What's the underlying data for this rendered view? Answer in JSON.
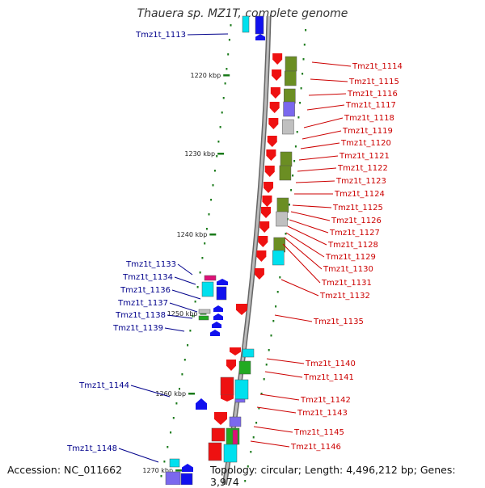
{
  "title": "Thauera sp. MZ1T, complete genome",
  "accession": "Accession: NC_011662",
  "topology": "Topology: circular; Length: 4,496,212 bp; Genes: 3,974",
  "colors": {
    "backbone": "#8c8c8c",
    "tick": "#1a7a1a",
    "left_label": "#00008b",
    "right_label": "#cc0000",
    "red": "#ee1111",
    "olive": "#6b8e23",
    "purple": "#7b68ee",
    "gray": "#c0c0c0",
    "cyan": "#00e0ee",
    "blue": "#1111ee",
    "magenta": "#dd1177",
    "green": "#22aa22"
  },
  "scale_ticks": [
    "1220 kbp",
    "1230 kbp",
    "1240 kbp",
    "1250 kbp",
    "1260 kbp",
    "1270 kbp"
  ],
  "left_genes": [
    "Tmz1t_1113",
    "Tmz1t_1133",
    "Tmz1t_1134",
    "Tmz1t_1136",
    "Tmz1t_1137",
    "Tmz1t_1138",
    "Tmz1t_1139",
    "Tmz1t_1144",
    "Tmz1t_1148"
  ],
  "right_genes": [
    "Tmz1t_1114",
    "Tmz1t_1115",
    "Tmz1t_1116",
    "Tmz1t_1117",
    "Tmz1t_1118",
    "Tmz1t_1119",
    "Tmz1t_1120",
    "Tmz1t_1121",
    "Tmz1t_1122",
    "Tmz1t_1123",
    "Tmz1t_1124",
    "Tmz1t_1125",
    "Tmz1t_1126",
    "Tmz1t_1127",
    "Tmz1t_1128",
    "Tmz1t_1129",
    "Tmz1t_1130",
    "Tmz1t_1131",
    "Tmz1t_1132",
    "Tmz1t_1135",
    "Tmz1t_1140",
    "Tmz1t_1141",
    "Tmz1t_1142",
    "Tmz1t_1143",
    "Tmz1t_1145",
    "Tmz1t_1146"
  ]
}
